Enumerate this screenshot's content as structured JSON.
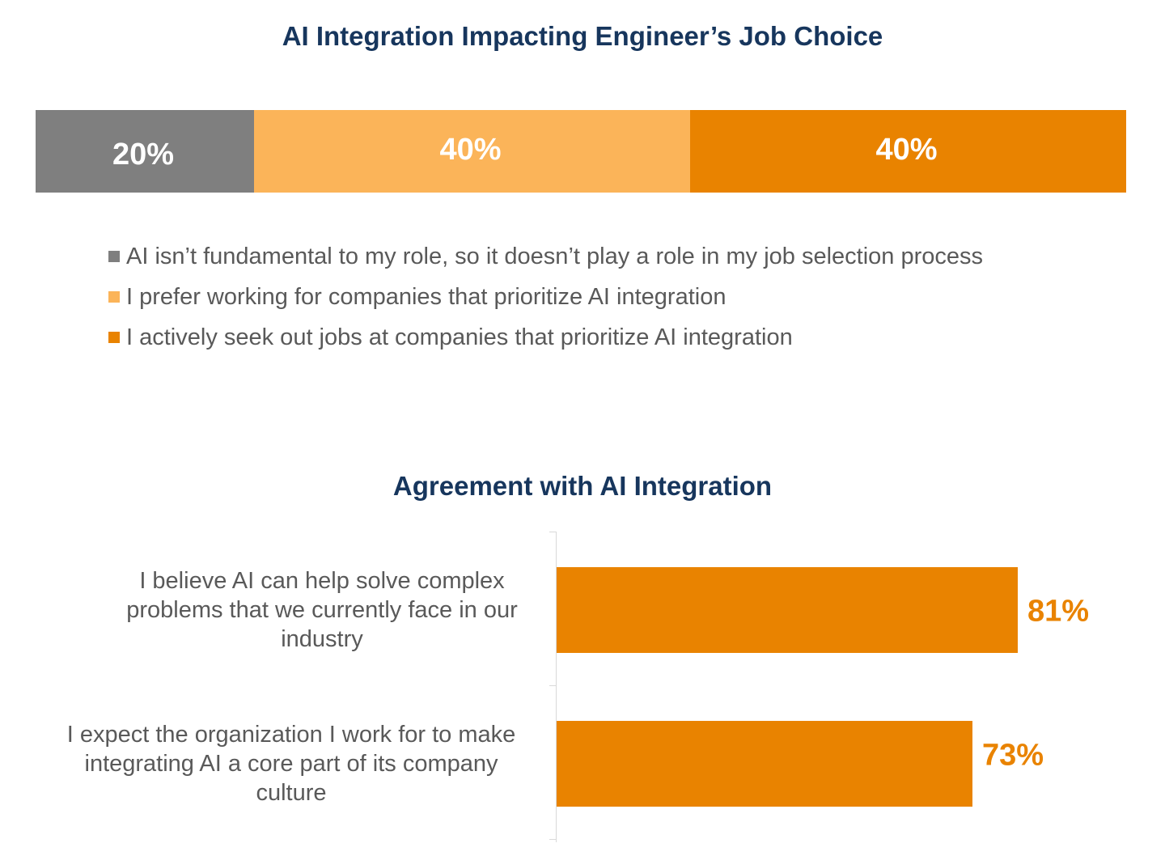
{
  "colors": {
    "title": "#17365d",
    "gray": "#7f7f7f",
    "light_orange": "#fbb459",
    "orange": "#e98300",
    "text": "#595959"
  },
  "chart_data": [
    {
      "type": "bar",
      "stacked": true,
      "orientation": "horizontal",
      "title": "AI Integration Impacting Engineer’s Job Choice",
      "series": [
        {
          "name": "AI isn’t fundamental to my role, so it doesn’t play a role in my job selection process",
          "value": 20,
          "label": "20%",
          "color": "#7f7f7f"
        },
        {
          "name": "I prefer working for companies that prioritize AI integration",
          "value": 40,
          "label": "40%",
          "color": "#fbb459"
        },
        {
          "name": "I actively seek out jobs at companies that prioritize AI integration",
          "value": 40,
          "label": "40%",
          "color": "#e98300"
        }
      ],
      "legend_position": "bottom-left"
    },
    {
      "type": "bar",
      "orientation": "horizontal",
      "title": "Agreement with AI Integration",
      "categories": [
        "I believe AI can help solve complex problems that we currently face in our industry",
        "I expect the organization I work for to make integrating AI a core part of its company culture"
      ],
      "category_lines": [
        [
          "I believe AI can help solve complex",
          "problems that we currently face in our",
          "industry"
        ],
        [
          "I expect the organization I work for to make",
          "integrating AI a core part of its company",
          "culture"
        ]
      ],
      "values": [
        81,
        73
      ],
      "labels": [
        "81%",
        "73%"
      ],
      "xlim": [
        0,
        100
      ],
      "color": "#e98300"
    }
  ]
}
